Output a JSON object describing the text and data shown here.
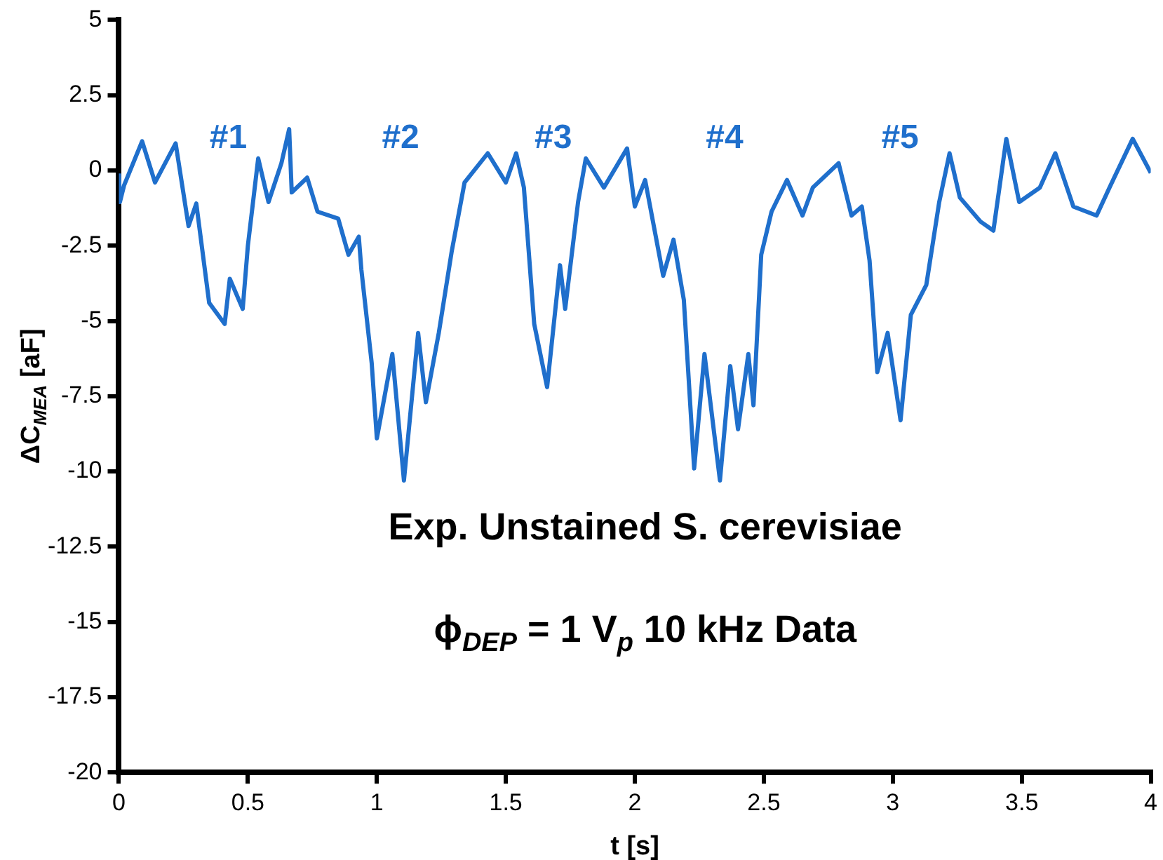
{
  "chart_data": {
    "type": "line",
    "xlabel": "t [s]",
    "ylabel": "ΔC$_{MEA}$ [aF]",
    "xlim": [
      0,
      4
    ],
    "xticks": [
      0,
      0.5,
      1,
      1.5,
      2,
      2.5,
      3,
      3.5,
      4
    ],
    "ylim": [
      -20,
      5
    ],
    "yticks": [
      -20,
      -17.5,
      -15,
      -12.5,
      -10,
      -7.5,
      -5,
      -2.5,
      0,
      2.5,
      5
    ],
    "grid": false,
    "legend": false,
    "marker": "none",
    "line_style": "solid",
    "series": [
      {
        "color": "#1f6fcc",
        "x": [
          0,
          0.004,
          0.02,
          0.09,
          0.14,
          0.22,
          0.27,
          0.3,
          0.35,
          0.41,
          0.43,
          0.48,
          0.5,
          0.54,
          0.58,
          0.63,
          0.66,
          0.67,
          0.73,
          0.77,
          0.85,
          0.89,
          0.93,
          0.94,
          0.98,
          1.0,
          1.06,
          1.105,
          1.16,
          1.19,
          1.24,
          1.29,
          1.34,
          1.43,
          1.5,
          1.54,
          1.57,
          1.61,
          1.66,
          1.71,
          1.73,
          1.78,
          1.81,
          1.88,
          1.97,
          2.0,
          2.04,
          2.11,
          2.15,
          2.19,
          2.23,
          2.27,
          2.33,
          2.37,
          2.4,
          2.44,
          2.46,
          2.49,
          2.53,
          2.59,
          2.65,
          2.69,
          2.79,
          2.84,
          2.88,
          2.91,
          2.94,
          2.98,
          3.03,
          3.07,
          3.13,
          3.18,
          3.22,
          3.26,
          3.34,
          3.39,
          3.44,
          3.49,
          3.57,
          3.63,
          3.7,
          3.79,
          3.84,
          3.93,
          4.0
        ],
        "values": [
          -0.1,
          -1.05,
          -0.5,
          0.97,
          -0.4,
          0.9,
          -1.85,
          -1.1,
          -4.4,
          -5.1,
          -3.6,
          -4.6,
          -2.5,
          0.4,
          -1.05,
          0.24,
          1.37,
          -0.73,
          -0.24,
          -1.37,
          -1.6,
          -2.8,
          -2.2,
          -3.3,
          -6.4,
          -8.9,
          -6.1,
          -10.3,
          -5.4,
          -7.7,
          -5.4,
          -2.7,
          -0.4,
          0.57,
          -0.4,
          0.57,
          -0.57,
          -5.1,
          -7.2,
          -3.15,
          -4.6,
          -1.05,
          0.4,
          -0.57,
          0.73,
          -1.2,
          -0.32,
          -3.5,
          -2.3,
          -4.3,
          -9.9,
          -6.1,
          -10.3,
          -6.5,
          -8.6,
          -6.1,
          -7.8,
          -2.8,
          -1.37,
          -0.32,
          -1.5,
          -0.57,
          0.24,
          -1.5,
          -1.2,
          -3.0,
          -6.7,
          -5.4,
          -8.3,
          -4.8,
          -3.8,
          -1.05,
          0.57,
          -0.9,
          -1.7,
          -2.0,
          1.05,
          -1.05,
          -0.57,
          0.57,
          -1.2,
          -1.5,
          -0.57,
          1.05,
          -0.08
        ]
      }
    ],
    "annotations": [
      "#1",
      "#2",
      "#3",
      "#4",
      "#5",
      "Exp. Unstained S. cerevisiae",
      "ϕ$_{DEP}$ = 1 V$_{p}$ 10 kHz Data"
    ]
  }
}
